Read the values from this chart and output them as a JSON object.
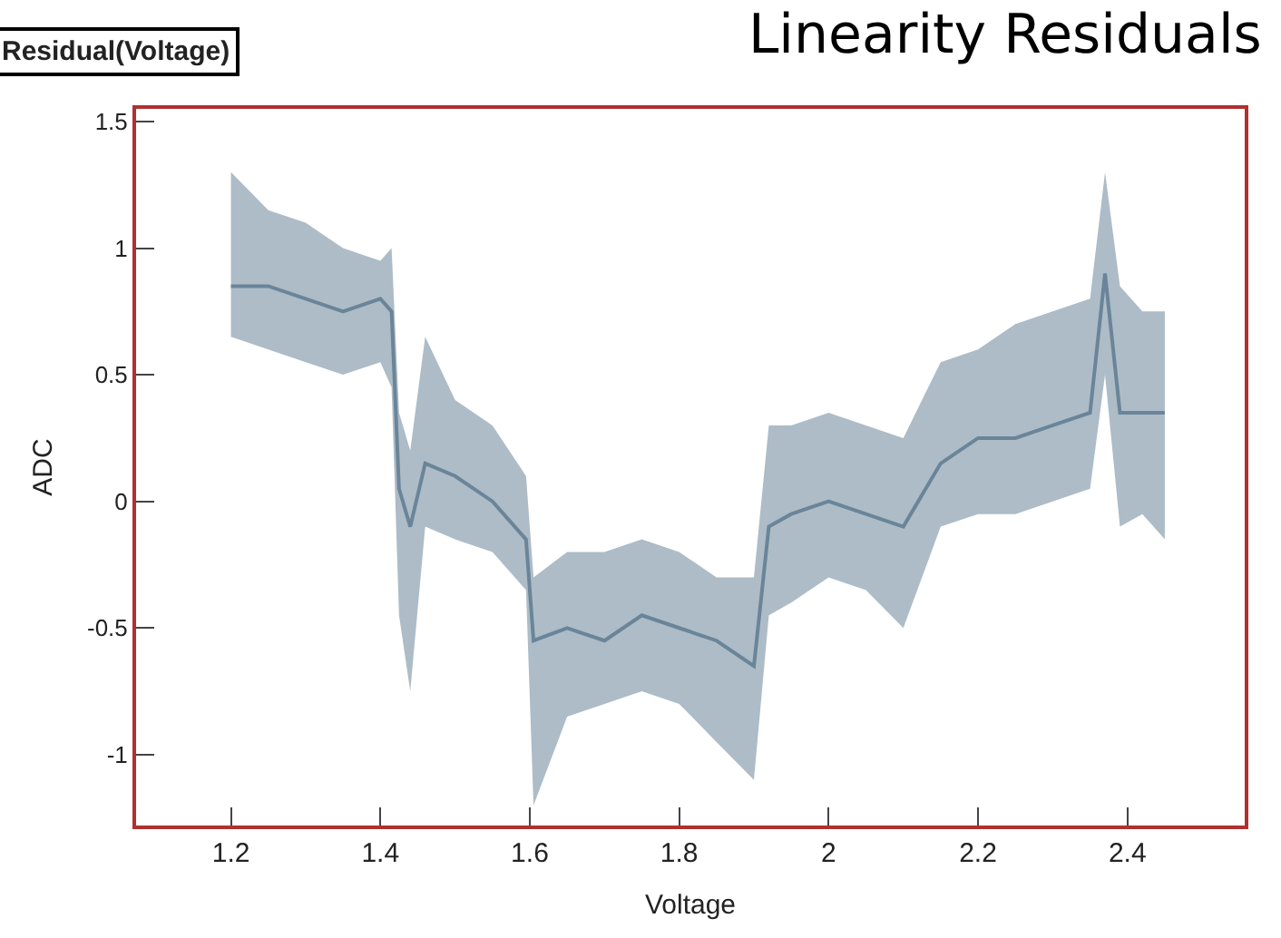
{
  "chart_data": {
    "type": "line",
    "title": "Linearity Residuals",
    "subtitle": "Residual(Voltage)",
    "xlabel": "Voltage",
    "ylabel": "ADC",
    "xlim": [
      1.073,
      2.557
    ],
    "ylim": [
      -1.28,
      1.55
    ],
    "xticks": [
      1.2,
      1.4,
      1.6,
      1.8,
      2,
      2.2,
      2.4
    ],
    "yticks": [
      -1,
      -0.5,
      0,
      0.5,
      1,
      1.5
    ],
    "marker": "none",
    "line_style": "solid",
    "series": [
      {
        "color": "#6a8599",
        "x": [
          1.2,
          1.25,
          1.3,
          1.35,
          1.4,
          1.415,
          1.425,
          1.44,
          1.46,
          1.5,
          1.55,
          1.595,
          1.605,
          1.65,
          1.7,
          1.75,
          1.8,
          1.85,
          1.9,
          1.92,
          1.95,
          2.0,
          2.05,
          2.1,
          2.15,
          2.2,
          2.25,
          2.3,
          2.35,
          2.37,
          2.39,
          2.42,
          2.45
        ],
        "values": [
          0.85,
          0.85,
          0.8,
          0.75,
          0.8,
          0.75,
          0.05,
          -0.1,
          0.15,
          0.1,
          0.0,
          -0.15,
          -0.55,
          -0.5,
          -0.55,
          -0.45,
          -0.5,
          -0.55,
          -0.65,
          -0.1,
          -0.05,
          0.0,
          -0.05,
          -0.1,
          0.15,
          0.25,
          0.25,
          0.3,
          0.35,
          0.9,
          0.35,
          0.35,
          0.35
        ],
        "lower": [
          0.65,
          0.6,
          0.55,
          0.5,
          0.55,
          0.45,
          -0.45,
          -0.75,
          -0.1,
          -0.15,
          -0.2,
          -0.35,
          -1.2,
          -0.85,
          -0.8,
          -0.75,
          -0.8,
          -0.95,
          -1.1,
          -0.45,
          -0.4,
          -0.3,
          -0.35,
          -0.5,
          -0.1,
          -0.05,
          -0.05,
          0.0,
          0.05,
          0.5,
          -0.1,
          -0.05,
          -0.15
        ],
        "upper": [
          1.3,
          1.15,
          1.1,
          1.0,
          0.95,
          1.0,
          0.35,
          0.2,
          0.65,
          0.4,
          0.3,
          0.1,
          -0.3,
          -0.2,
          -0.2,
          -0.15,
          -0.2,
          -0.3,
          -0.3,
          0.3,
          0.3,
          0.35,
          0.3,
          0.25,
          0.55,
          0.6,
          0.7,
          0.75,
          0.8,
          1.3,
          0.85,
          0.75,
          0.75
        ]
      }
    ]
  }
}
